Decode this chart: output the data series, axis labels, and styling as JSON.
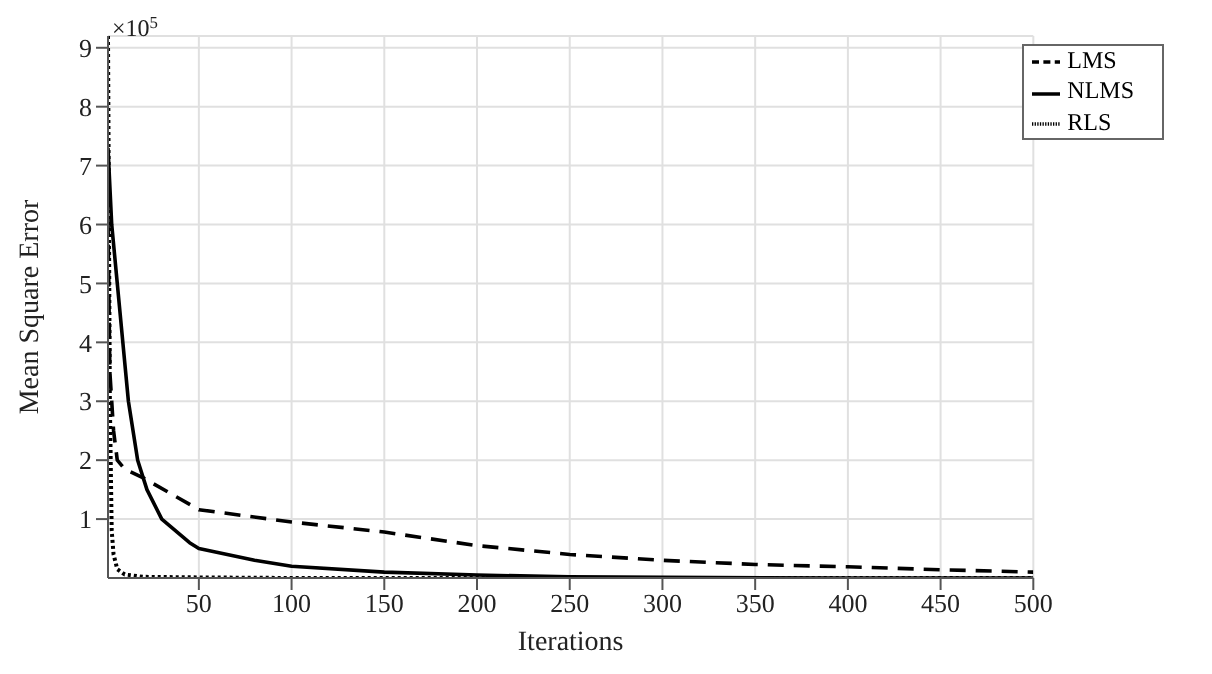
{
  "chart_data": {
    "type": "line",
    "xlabel": "Iterations",
    "ylabel": "Mean Square Error",
    "annotations": [
      "×10$^{5}$"
    ],
    "xlim": [
      1,
      500
    ],
    "xticks": [
      50,
      100,
      150,
      200,
      250,
      300,
      350,
      400,
      450,
      500
    ],
    "ylim": [
      0,
      9.2
    ],
    "yticks": [
      1,
      2,
      3,
      4,
      5,
      6,
      7,
      8,
      9
    ],
    "grid": true,
    "legend": "top right",
    "marker": "none",
    "series": [
      {
        "name": "LMS",
        "color": "#000000",
        "line_style": "dashed",
        "x": [
          1,
          2,
          4,
          6,
          10,
          20,
          50,
          100,
          150,
          200,
          250,
          300,
          350,
          400,
          450,
          500
        ],
        "values": [
          6.1,
          3.5,
          2.5,
          2.0,
          1.85,
          1.7,
          1.16,
          0.95,
          0.78,
          0.55,
          0.4,
          0.3,
          0.23,
          0.19,
          0.14,
          0.1
        ]
      },
      {
        "name": "NLMS",
        "color": "#000000",
        "line_style": "solid",
        "x": [
          1,
          3,
          6,
          9,
          12,
          17,
          22,
          30,
          45,
          50,
          80,
          100,
          150,
          200,
          250,
          300,
          400,
          500
        ],
        "values": [
          7.3,
          6.0,
          5.0,
          4.0,
          3.0,
          2.0,
          1.5,
          1.0,
          0.6,
          0.5,
          0.3,
          0.2,
          0.1,
          0.05,
          0.02,
          0.01,
          0,
          0
        ]
      },
      {
        "name": "RLS",
        "color": "#000000",
        "line_style": "dotted",
        "x": [
          1,
          2,
          3,
          4,
          6,
          10,
          20,
          50,
          100,
          200,
          300,
          400,
          500
        ],
        "values": [
          9.2,
          3.0,
          0.8,
          0.4,
          0.15,
          0.06,
          0.02,
          0.01,
          0,
          0,
          0,
          0,
          0
        ]
      }
    ]
  }
}
